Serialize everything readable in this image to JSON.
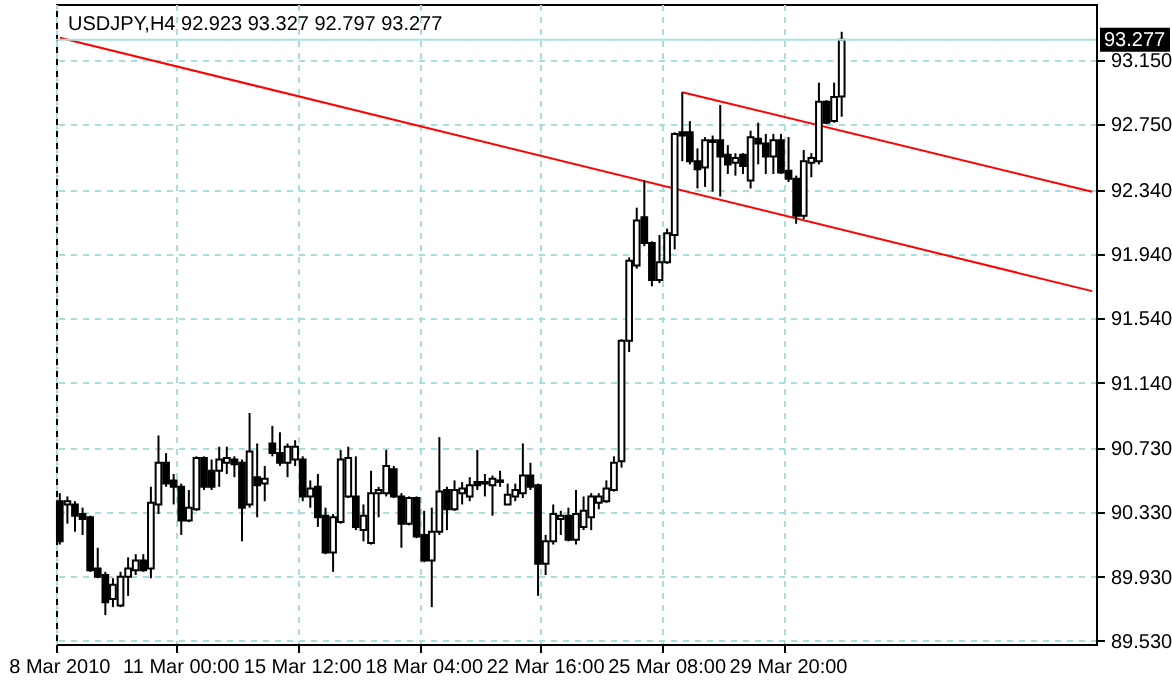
{
  "chart_data": {
    "type": "candlestick",
    "title": "USDJPY,H4 92.923 93.327 92.797 93.277",
    "categories": [
      "8 Mar 2010",
      null,
      null,
      null,
      null,
      null,
      null,
      null,
      null,
      null,
      null,
      null,
      null,
      null,
      null,
      null,
      "11 Mar 00:00",
      null,
      null,
      null,
      null,
      null,
      null,
      null,
      null,
      null,
      null,
      null,
      null,
      null,
      null,
      null,
      "15 Mar 12:00",
      null,
      null,
      null,
      null,
      null,
      null,
      null,
      null,
      null,
      null,
      null,
      null,
      null,
      null,
      null,
      "18 Mar 04:00",
      null,
      null,
      null,
      null,
      null,
      null,
      null,
      null,
      null,
      null,
      null,
      null,
      null,
      null,
      null,
      "22 Mar 16:00",
      null,
      null,
      null,
      null,
      null,
      null,
      null,
      null,
      null,
      null,
      null,
      null,
      null,
      null,
      null,
      "25 Mar 08:00",
      null,
      null,
      null,
      null,
      null,
      null,
      null,
      null,
      null,
      null,
      null,
      null,
      null,
      null,
      null,
      "29 Mar 20:00",
      null,
      null,
      null,
      null,
      null,
      null,
      null,
      null,
      null,
      null,
      null,
      null,
      null,
      null,
      null,
      null,
      null,
      null,
      null,
      null,
      null,
      null,
      null,
      null,
      null,
      null,
      null,
      null,
      null,
      null,
      null,
      null,
      null,
      null,
      null,
      null,
      null,
      null,
      null,
      null
    ],
    "ohlc": [
      [
        90.4,
        90.45,
        90.13,
        90.15
      ],
      [
        90.38,
        90.43,
        90.26,
        90.4
      ],
      [
        90.38,
        90.4,
        90.21,
        90.31
      ],
      [
        90.32,
        90.36,
        90.19,
        90.29
      ],
      [
        90.3,
        90.31,
        89.96,
        89.97
      ],
      [
        89.98,
        90.11,
        89.92,
        89.93
      ],
      [
        89.94,
        89.96,
        89.69,
        89.77
      ],
      [
        89.79,
        89.92,
        89.74,
        89.88
      ],
      [
        89.75,
        89.96,
        89.74,
        89.93
      ],
      [
        89.93,
        90.05,
        89.81,
        89.98
      ],
      [
        89.97,
        90.07,
        89.94,
        90.03
      ],
      [
        90.03,
        90.07,
        89.96,
        89.97
      ],
      [
        89.98,
        90.49,
        89.92,
        90.39
      ],
      [
        90.38,
        90.81,
        90.32,
        90.64
      ],
      [
        90.64,
        90.7,
        90.49,
        90.51
      ],
      [
        90.53,
        90.57,
        90.38,
        90.49
      ],
      [
        90.49,
        90.51,
        90.19,
        90.28
      ],
      [
        90.28,
        90.47,
        90.27,
        90.36
      ],
      [
        90.35,
        90.68,
        90.34,
        90.67
      ],
      [
        90.67,
        90.68,
        90.47,
        90.49
      ],
      [
        90.59,
        90.66,
        90.47,
        90.49
      ],
      [
        90.59,
        90.74,
        90.49,
        90.66
      ],
      [
        90.64,
        90.74,
        90.57,
        90.67
      ],
      [
        90.66,
        90.68,
        90.55,
        90.63
      ],
      [
        90.64,
        90.66,
        90.15,
        90.36
      ],
      [
        90.38,
        90.95,
        90.36,
        90.71
      ],
      [
        90.55,
        90.76,
        90.3,
        90.5
      ],
      [
        90.51,
        90.62,
        90.4,
        90.54
      ],
      [
        90.76,
        90.87,
        90.68,
        90.7
      ],
      [
        90.7,
        90.83,
        90.62,
        90.64
      ],
      [
        90.64,
        90.76,
        90.55,
        90.74
      ],
      [
        90.66,
        90.78,
        90.62,
        90.74
      ],
      [
        90.66,
        90.68,
        90.4,
        90.43
      ],
      [
        90.43,
        90.53,
        90.36,
        90.48
      ],
      [
        90.49,
        90.57,
        90.24,
        90.3
      ],
      [
        90.31,
        90.36,
        90.07,
        90.08
      ],
      [
        90.08,
        90.32,
        89.96,
        90.3
      ],
      [
        90.27,
        90.72,
        90.26,
        90.66
      ],
      [
        90.43,
        90.74,
        90.42,
        90.67
      ],
      [
        90.43,
        90.68,
        90.22,
        90.24
      ],
      [
        90.22,
        90.38,
        90.15,
        90.31
      ],
      [
        90.14,
        90.59,
        90.13,
        90.45
      ],
      [
        90.45,
        90.49,
        90.3,
        90.47
      ],
      [
        90.45,
        90.72,
        90.43,
        90.62
      ],
      [
        90.6,
        90.62,
        90.42,
        90.43
      ],
      [
        90.43,
        90.45,
        90.11,
        90.26
      ],
      [
        90.26,
        90.43,
        90.25,
        90.42
      ],
      [
        90.42,
        90.43,
        90.17,
        90.18
      ],
      [
        90.19,
        90.34,
        90.02,
        90.03
      ],
      [
        90.03,
        90.36,
        89.74,
        90.21
      ],
      [
        90.21,
        90.8,
        90.19,
        90.46
      ],
      [
        90.47,
        90.49,
        90.22,
        90.35
      ],
      [
        90.35,
        90.53,
        90.34,
        90.47
      ],
      [
        90.45,
        90.52,
        90.38,
        90.48
      ],
      [
        90.43,
        90.55,
        90.4,
        90.5
      ],
      [
        90.52,
        90.72,
        90.47,
        90.5
      ],
      [
        90.51,
        90.57,
        90.43,
        90.52
      ],
      [
        90.5,
        90.56,
        90.31,
        90.54
      ],
      [
        90.53,
        90.59,
        90.49,
        90.52
      ],
      [
        90.38,
        90.51,
        90.38,
        90.44
      ],
      [
        90.43,
        90.51,
        90.4,
        90.47
      ],
      [
        90.45,
        90.76,
        90.42,
        90.56
      ],
      [
        90.56,
        90.64,
        90.47,
        90.49
      ],
      [
        90.5,
        90.51,
        89.81,
        90.01
      ],
      [
        90.01,
        90.19,
        89.94,
        90.15
      ],
      [
        90.15,
        90.38,
        90.13,
        90.32
      ],
      [
        90.29,
        90.34,
        90.19,
        90.31
      ],
      [
        90.31,
        90.36,
        90.15,
        90.16
      ],
      [
        90.16,
        90.47,
        90.13,
        90.32
      ],
      [
        90.24,
        90.43,
        90.22,
        90.34
      ],
      [
        90.3,
        90.45,
        90.22,
        90.43
      ],
      [
        90.39,
        90.45,
        90.35,
        90.43
      ],
      [
        90.4,
        90.53,
        90.39,
        90.48
      ],
      [
        90.47,
        90.68,
        90.46,
        90.64
      ],
      [
        90.65,
        91.41,
        90.61,
        91.4
      ],
      [
        91.4,
        91.92,
        91.33,
        91.9
      ],
      [
        91.87,
        92.23,
        91.85,
        92.15
      ],
      [
        92.17,
        92.4,
        91.99,
        92.01
      ],
      [
        92.01,
        92.02,
        91.74,
        91.78
      ],
      [
        91.78,
        92.06,
        91.76,
        91.89
      ],
      [
        91.89,
        92.1,
        91.88,
        92.07
      ],
      [
        92.06,
        92.7,
        91.97,
        92.69
      ],
      [
        92.7,
        92.95,
        92.52,
        92.68
      ],
      [
        92.7,
        92.77,
        92.5,
        92.52
      ],
      [
        92.52,
        92.6,
        92.35,
        92.47
      ],
      [
        92.48,
        92.67,
        92.36,
        92.65
      ],
      [
        92.64,
        92.68,
        92.33,
        92.65
      ],
      [
        92.65,
        92.87,
        92.3,
        92.55
      ],
      [
        92.56,
        92.62,
        92.44,
        92.5
      ],
      [
        92.51,
        92.57,
        92.43,
        92.54
      ],
      [
        92.56,
        92.57,
        92.44,
        92.49
      ],
      [
        92.4,
        92.71,
        92.35,
        92.67
      ],
      [
        92.66,
        92.76,
        92.5,
        92.63
      ],
      [
        92.63,
        92.69,
        92.44,
        92.55
      ],
      [
        92.55,
        92.69,
        92.44,
        92.65
      ],
      [
        92.65,
        92.69,
        92.44,
        92.45
      ],
      [
        92.46,
        92.67,
        92.39,
        92.41
      ],
      [
        92.41,
        92.43,
        92.13,
        92.18
      ],
      [
        92.18,
        92.59,
        92.16,
        92.52
      ],
      [
        92.51,
        92.57,
        92.42,
        92.54
      ],
      [
        92.52,
        93.01,
        92.5,
        92.89
      ],
      [
        92.89,
        92.9,
        92.75,
        92.76
      ],
      [
        92.77,
        93.01,
        92.76,
        92.92
      ],
      [
        92.923,
        93.327,
        92.797,
        93.277
      ],
      null,
      null,
      null,
      null,
      null,
      null,
      null,
      null,
      null,
      null,
      null,
      null,
      null,
      null,
      null,
      null,
      null,
      null,
      null,
      null,
      null,
      null,
      null,
      null,
      null,
      null,
      null,
      null,
      null,
      null,
      null,
      null,
      null
    ],
    "series": [
      {
        "type": "line",
        "color": "#ff0000",
        "values": [
          93.29,
          null,
          null,
          null,
          null,
          null,
          null,
          null,
          null,
          null,
          null,
          null,
          null,
          null,
          null,
          null,
          null,
          null,
          null,
          null,
          null,
          null,
          null,
          null,
          null,
          null,
          null,
          null,
          null,
          null,
          null,
          null,
          null,
          null,
          null,
          null,
          null,
          null,
          null,
          null,
          null,
          null,
          null,
          null,
          null,
          null,
          null,
          null,
          null,
          null,
          null,
          null,
          null,
          null,
          null,
          null,
          null,
          null,
          null,
          null,
          null,
          null,
          null,
          null,
          null,
          null,
          null,
          null,
          null,
          null,
          null,
          null,
          null,
          null,
          null,
          null,
          null,
          null,
          null,
          null,
          null,
          null,
          null,
          null,
          null,
          null,
          null,
          null,
          null,
          null,
          null,
          null,
          null,
          null,
          null,
          null,
          null,
          null,
          null,
          null,
          null,
          null,
          null,
          null,
          null,
          null,
          null,
          null,
          null,
          null,
          null,
          null,
          null,
          null,
          null,
          null,
          null,
          null,
          null,
          null,
          null,
          null,
          null,
          null,
          null,
          null,
          null,
          null,
          null,
          null,
          null,
          null,
          null,
          null,
          null,
          null,
          91.71
        ]
      },
      {
        "type": "line",
        "color": "#ff0000",
        "values": [
          null,
          null,
          null,
          null,
          null,
          null,
          null,
          null,
          null,
          null,
          null,
          null,
          null,
          null,
          null,
          null,
          null,
          null,
          null,
          null,
          null,
          null,
          null,
          null,
          null,
          null,
          null,
          null,
          null,
          null,
          null,
          null,
          null,
          null,
          null,
          null,
          null,
          null,
          null,
          null,
          null,
          null,
          null,
          null,
          null,
          null,
          null,
          null,
          null,
          null,
          null,
          null,
          null,
          null,
          null,
          null,
          null,
          null,
          null,
          null,
          null,
          null,
          null,
          null,
          null,
          null,
          null,
          null,
          null,
          null,
          null,
          null,
          null,
          null,
          null,
          null,
          null,
          null,
          null,
          null,
          null,
          null,
          92.95,
          null,
          null,
          null,
          null,
          null,
          null,
          null,
          null,
          null,
          null,
          null,
          null,
          null,
          null,
          null,
          null,
          null,
          null,
          null,
          null,
          null,
          null,
          null,
          null,
          null,
          null,
          null,
          null,
          null,
          null,
          null,
          null,
          null,
          null,
          null,
          null,
          null,
          null,
          null,
          null,
          null,
          null,
          null,
          null,
          null,
          null,
          null,
          null,
          null,
          null,
          null,
          null,
          null,
          92.33
        ]
      }
    ],
    "ylim": [
      89.51,
      93.5
    ],
    "yticks": [
      {
        "value": 89.53,
        "label": "89.530"
      },
      {
        "value": 89.93,
        "label": "89.930"
      },
      {
        "value": 90.33,
        "label": "90.330"
      },
      {
        "value": 90.73,
        "label": "90.730"
      },
      {
        "value": 91.14,
        "label": "91.140"
      },
      {
        "value": 91.54,
        "label": "91.540"
      },
      {
        "value": 91.94,
        "label": "91.940"
      },
      {
        "value": 92.34,
        "label": "92.340"
      },
      {
        "value": 92.75,
        "label": "92.750"
      },
      {
        "value": 93.15,
        "label": "93.150"
      }
    ],
    "ref_lines": [
      {
        "axis": "y",
        "value": 93.277,
        "label": "93.277",
        "color": "#a8e0e0"
      }
    ],
    "grid": true
  }
}
